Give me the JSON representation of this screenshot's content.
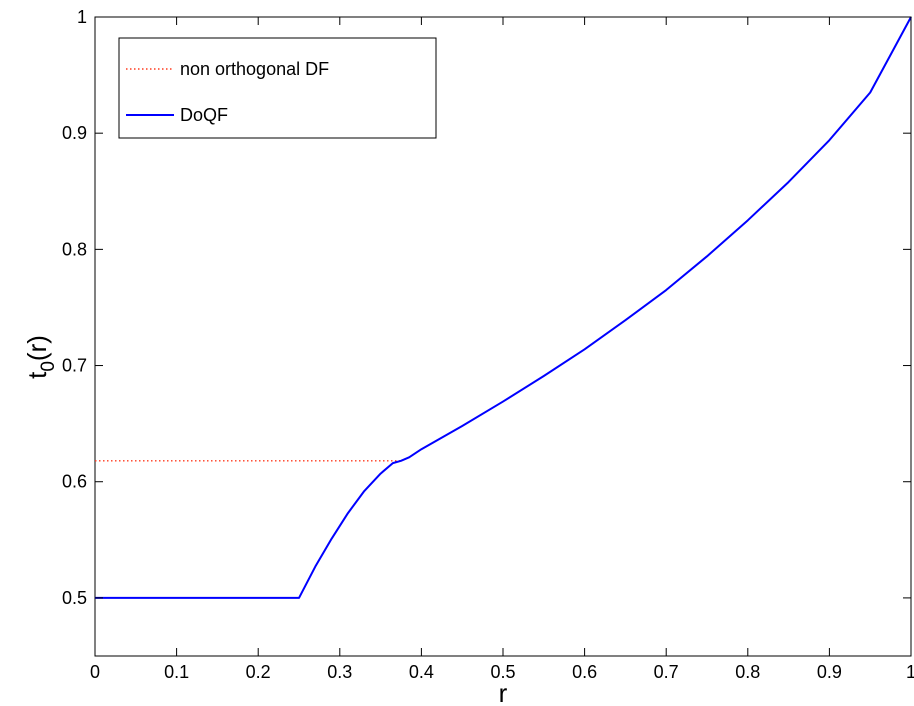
{
  "chart_data": {
    "type": "line",
    "xlabel": "r",
    "ylabel": "t",
    "ylabel_sub": "0",
    "ylabel_tail": "(r)",
    "xlim": [
      0,
      1
    ],
    "ylim": [
      0.45,
      1
    ],
    "xticks": [
      0,
      0.1,
      0.2,
      0.3,
      0.4,
      0.5,
      0.6,
      0.7,
      0.8,
      0.9,
      1
    ],
    "xtick_labels": [
      "0",
      "0.1",
      "0.2",
      "0.3",
      "0.4",
      "0.5",
      "0.6",
      "0.7",
      "0.8",
      "0.9",
      "1"
    ],
    "yticks": [
      0.5,
      0.6,
      0.7,
      0.8,
      0.9,
      1
    ],
    "ytick_labels": [
      "0.5",
      "0.6",
      "0.7",
      "0.8",
      "0.9",
      "1"
    ],
    "grid": false,
    "legend_position": "top-left",
    "series": [
      {
        "name": "non orthogonal DF",
        "color": "#ff3b1f",
        "style": "dotted",
        "x": [
          0,
          0.375
        ],
        "y": [
          0.618,
          0.618
        ]
      },
      {
        "name": "DoQF",
        "color": "#0000ff",
        "style": "solid",
        "x": [
          0,
          0.25,
          0.27,
          0.29,
          0.31,
          0.33,
          0.35,
          0.365,
          0.375,
          0.385,
          0.4,
          0.45,
          0.5,
          0.55,
          0.6,
          0.65,
          0.7,
          0.75,
          0.8,
          0.85,
          0.9,
          0.95,
          1.0
        ],
        "y": [
          0.5,
          0.5,
          0.527,
          0.551,
          0.573,
          0.592,
          0.607,
          0.616,
          0.618,
          0.621,
          0.628,
          0.648,
          0.669,
          0.691,
          0.714,
          0.739,
          0.765,
          0.794,
          0.825,
          0.858,
          0.894,
          0.935,
          1.0
        ]
      }
    ]
  }
}
